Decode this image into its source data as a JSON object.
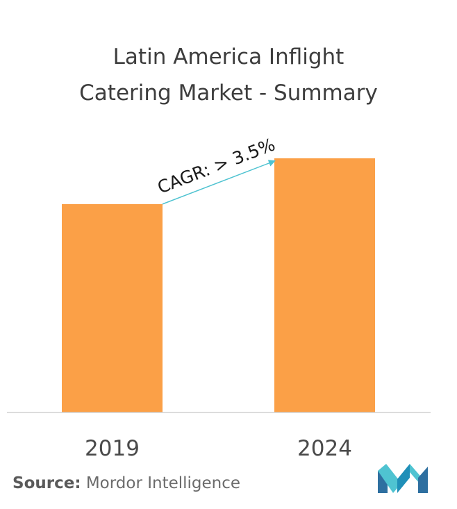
{
  "title_lines": [
    "Latin America Inflight",
    "Catering Market - Summary"
  ],
  "chart_data": {
    "type": "bar",
    "categories": [
      "2019",
      "2024"
    ],
    "values": [
      0.82,
      1.0
    ],
    "ylim": [
      0,
      1.0
    ],
    "yaxis_visible": false,
    "grid": false,
    "bar_color": "#FBA047",
    "annotation": {
      "text": "CAGR: > 3.5%",
      "arrow_color": "#4FC3D1",
      "from_category": "2019",
      "to_category": "2024"
    }
  },
  "source": {
    "label": "Source:",
    "text": "Mordor Intelligence"
  },
  "logo": {
    "name": "mordor-intelligence-logo",
    "colors": [
      "#2E6FA0",
      "#4FC3D1",
      "#1F8FB8"
    ]
  }
}
